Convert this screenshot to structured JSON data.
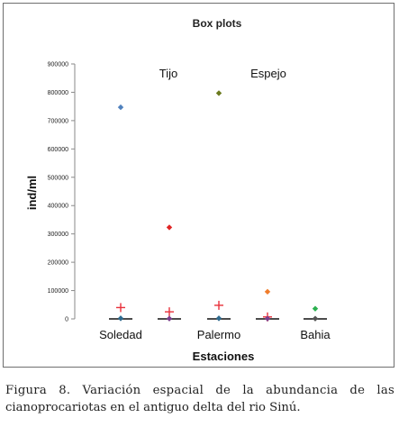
{
  "chart_data": {
    "type": "scatter",
    "title": "Box plots",
    "xlabel": "Estaciones",
    "ylabel": "ind/ml",
    "ylim": [
      0,
      900000
    ],
    "yticks": [
      "0",
      "100000",
      "200000",
      "300000",
      "400000",
      "500000",
      "600000",
      "700000",
      "800000",
      "900000"
    ],
    "categories": [
      "Soledad",
      "Palermo",
      "Bahia"
    ],
    "annotations": [
      "Tijo",
      "Espejo"
    ],
    "points": [
      {
        "x": 1,
        "y": 747000,
        "shape": "diamond",
        "color": "#4f81bd"
      },
      {
        "x": 1,
        "y": 40000,
        "shape": "plus",
        "color": "#e8303a"
      },
      {
        "x": 1,
        "y": 2000,
        "shape": "diamond",
        "color": "#2f6b8f"
      },
      {
        "x": 2,
        "y": 323000,
        "shape": "diamond",
        "color": "#e02525"
      },
      {
        "x": 2,
        "y": 25000,
        "shape": "plus",
        "color": "#e8303a"
      },
      {
        "x": 2,
        "y": 1000,
        "shape": "diamond",
        "color": "#7a3e8c"
      },
      {
        "x": 3,
        "y": 797000,
        "shape": "diamond",
        "color": "#6b7a1e"
      },
      {
        "x": 3,
        "y": 48000,
        "shape": "plus",
        "color": "#e8303a"
      },
      {
        "x": 3,
        "y": 2000,
        "shape": "diamond",
        "color": "#2f6b8f"
      },
      {
        "x": 4,
        "y": 96000,
        "shape": "diamond",
        "color": "#f07c2a"
      },
      {
        "x": 4,
        "y": 7000,
        "shape": "plus",
        "color": "#e8303a"
      },
      {
        "x": 4,
        "y": 1000,
        "shape": "diamond",
        "color": "#7a3e8c"
      },
      {
        "x": 5,
        "y": 36000,
        "shape": "diamond",
        "color": "#2bb04f"
      },
      {
        "x": 5,
        "y": 1000,
        "shape": "diamond",
        "color": "#555555"
      }
    ],
    "medians": [
      {
        "x": 1,
        "y": 0
      },
      {
        "x": 2,
        "y": 0
      },
      {
        "x": 3,
        "y": 0
      },
      {
        "x": 4,
        "y": 0
      },
      {
        "x": 5,
        "y": 0
      }
    ],
    "grid": false,
    "legend": "none"
  },
  "caption": {
    "line1": "Figura 8. Variación espacial de la abundancia de las",
    "line2": "cianoprocariotas en el antiguo delta del rio Sinú."
  }
}
